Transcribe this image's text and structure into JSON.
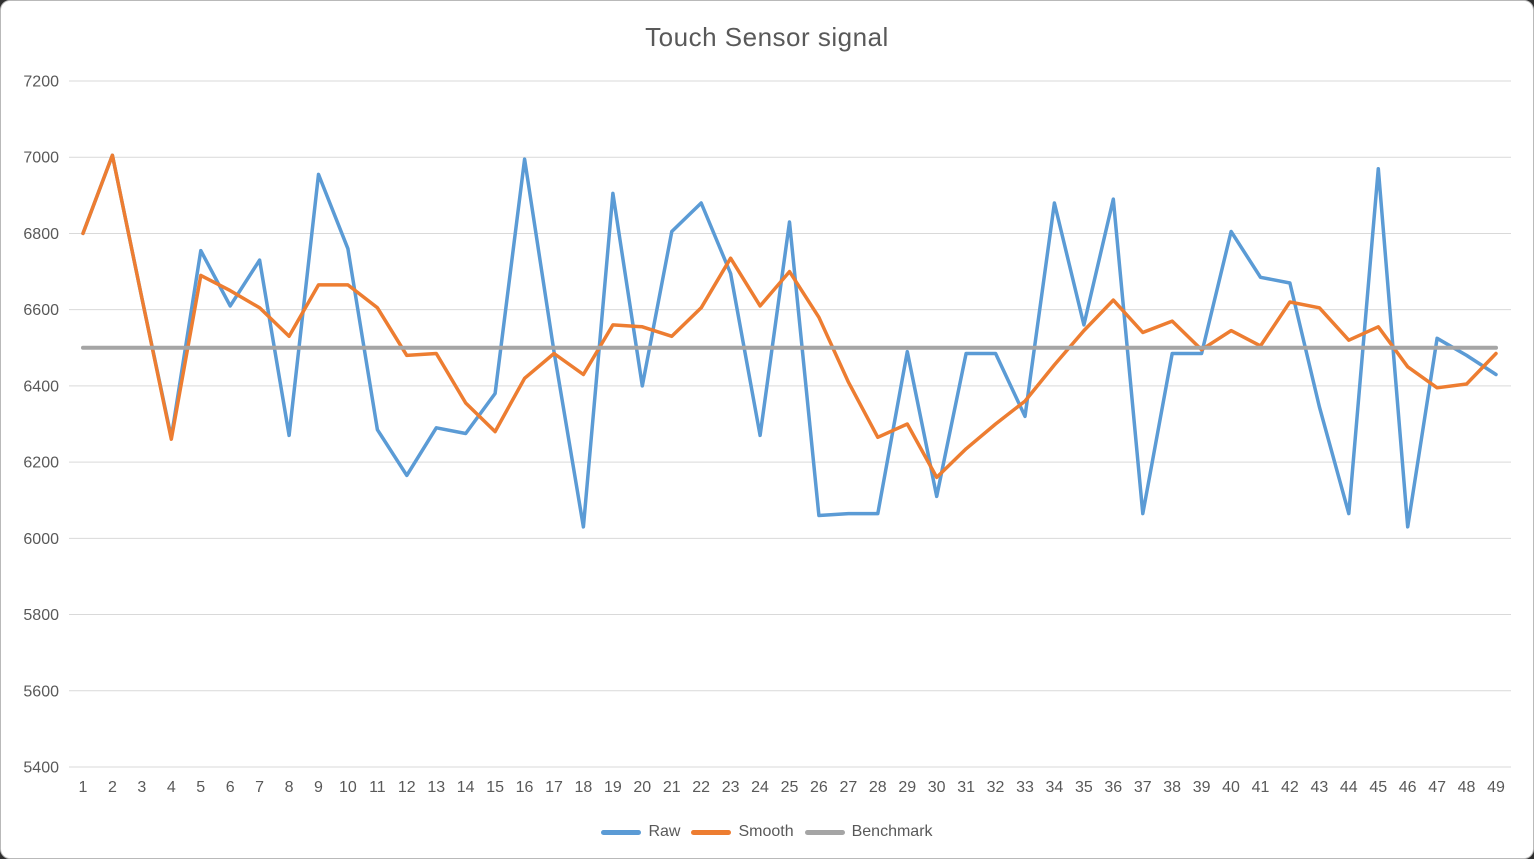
{
  "title": "Touch Sensor signal",
  "colors": {
    "raw": "#5B9BD5",
    "smooth": "#ED7D31",
    "benchmark": "#A5A5A5",
    "gridline": "#D9D9D9",
    "axis_text": "#595959",
    "title_text": "#595959",
    "background": "#FFFFFF"
  },
  "legend": {
    "position": "bottom-center",
    "items": [
      {
        "label": "Raw",
        "color": "#5B9BD5"
      },
      {
        "label": "Smooth",
        "color": "#ED7D31"
      },
      {
        "label": "Benchmark",
        "color": "#A5A5A5"
      }
    ]
  },
  "chart_data": {
    "type": "line",
    "title": "Touch Sensor signal",
    "xlabel": "",
    "ylabel": "",
    "ylim": [
      5400,
      7200
    ],
    "y_ticks": [
      7200,
      7000,
      6800,
      6600,
      6400,
      6200,
      6000,
      5800,
      5600,
      5400
    ],
    "grid": true,
    "legend_position": "bottom",
    "x_labels": [
      "1",
      "2",
      "3",
      "4",
      "5",
      "6",
      "7",
      "8",
      "9",
      "10",
      "11",
      "12",
      "13",
      "14",
      "15",
      "16",
      "17",
      "18",
      "19",
      "20",
      "21",
      "22",
      "23",
      "24",
      "25",
      "26",
      "27",
      "28",
      "29",
      "30",
      "31",
      "32",
      "33",
      "34",
      "35",
      "36",
      "37",
      "38",
      "39",
      "40",
      "41",
      "42",
      "43",
      "44",
      "45",
      "46",
      "47",
      "48",
      "49"
    ],
    "series": [
      {
        "name": "Raw",
        "color": "#5B9BD5",
        "stroke_width": 3.5,
        "values": [
          6800,
          7005,
          6630,
          6265,
          6755,
          6610,
          6730,
          6270,
          6955,
          6760,
          6285,
          6165,
          6290,
          6275,
          6380,
          6995,
          6490,
          6030,
          6905,
          6400,
          6805,
          6880,
          6695,
          6270,
          6830,
          6060,
          6065,
          6065,
          6490,
          6110,
          6485,
          6485,
          6320,
          6880,
          6560,
          6890,
          6065,
          6485,
          6485,
          6805,
          6685,
          6670,
          6345,
          6065,
          6970,
          6030,
          6525,
          6480,
          6430
        ]
      },
      {
        "name": "Smooth",
        "color": "#ED7D31",
        "stroke_width": 3.5,
        "values": [
          6800,
          7005,
          6630,
          6260,
          6690,
          6650,
          6605,
          6530,
          6665,
          6665,
          6605,
          6480,
          6485,
          6355,
          6280,
          6420,
          6485,
          6430,
          6560,
          6555,
          6530,
          6605,
          6735,
          6610,
          6700,
          6580,
          6410,
          6265,
          6300,
          6160,
          6235,
          6300,
          6360,
          6455,
          6545,
          6625,
          6540,
          6570,
          6495,
          6545,
          6505,
          6620,
          6605,
          6520,
          6555,
          6450,
          6395,
          6405,
          6485
        ]
      },
      {
        "name": "Benchmark",
        "color": "#A5A5A5",
        "stroke_width": 4,
        "constant": 6500
      }
    ]
  }
}
